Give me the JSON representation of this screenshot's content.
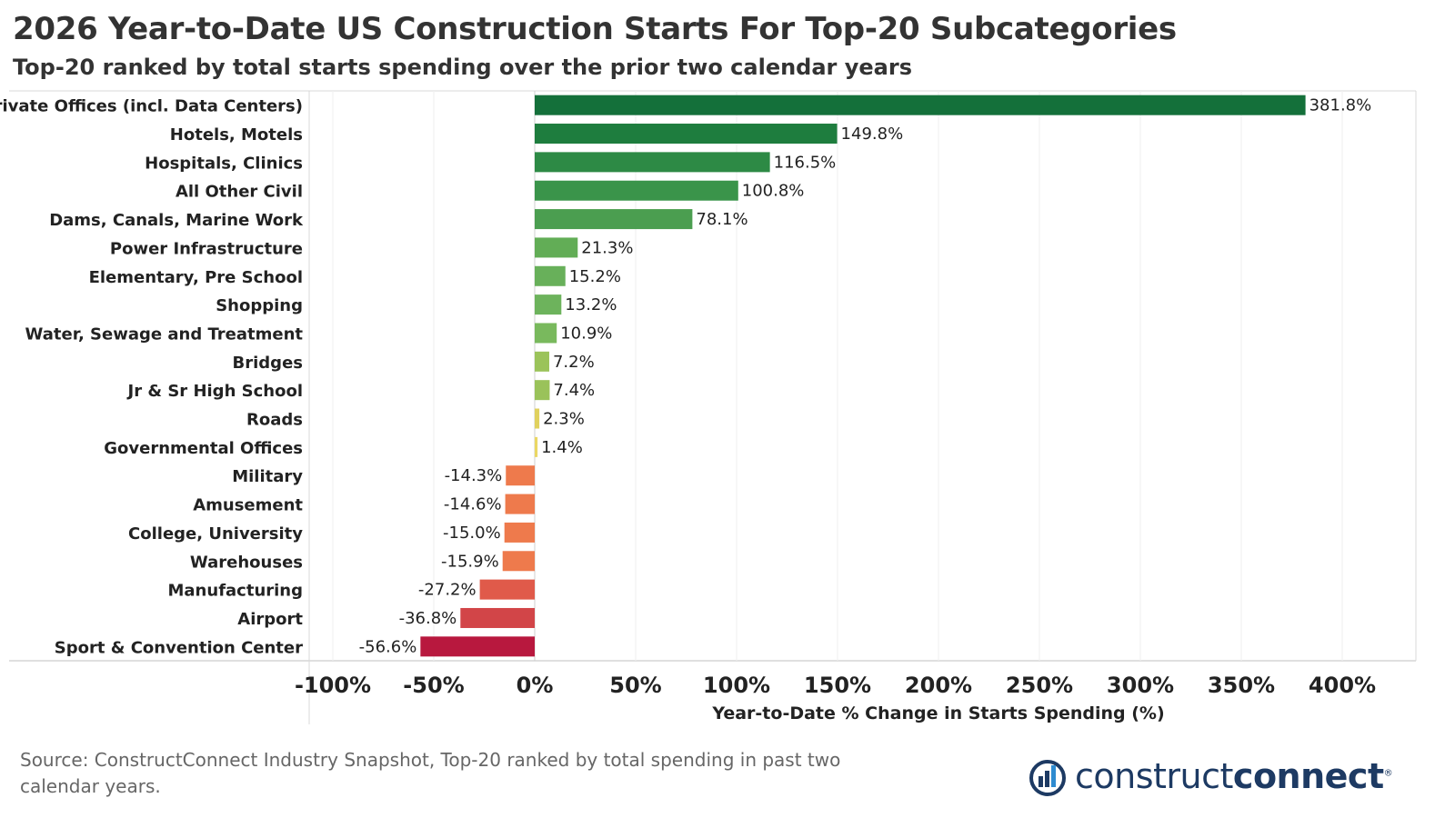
{
  "header": {
    "title": "2026 Year-to-Date US Construction Starts For Top-20 Subcategories",
    "subtitle": "Top-20 ranked by total starts spending over the prior two calendar years"
  },
  "footer": {
    "source": "Source: ConstructConnect Industry Snapshot, Top-20 ranked by total spending in past two calendar years."
  },
  "logo": {
    "part1": "construct",
    "part2": "connect",
    "mark": "®",
    "icon": "construct-connect-logo-icon"
  },
  "chart_data": {
    "type": "bar",
    "orientation": "horizontal",
    "title": "2026 Year-to-Date US Construction Starts For Top-20 Subcategories",
    "subtitle": "Top-20 ranked by total starts spending over the prior two calendar years",
    "xlabel": "Year-to-Date % Change in Starts Spending (%)",
    "ylabel": "",
    "xlim": [
      -110,
      420
    ],
    "xticks": [
      -100,
      -50,
      0,
      50,
      100,
      150,
      200,
      250,
      300,
      350,
      400
    ],
    "xtick_labels": [
      "-100%",
      "-50%",
      "0%",
      "50%",
      "100%",
      "150%",
      "200%",
      "250%",
      "300%",
      "350%",
      "400%"
    ],
    "grid": "vertical",
    "categories": [
      "Private Offices (incl. Data Centers)",
      "Hotels, Motels",
      "Hospitals, Clinics",
      "All Other Civil",
      "Dams, Canals, Marine Work",
      "Power Infrastructure",
      "Elementary, Pre School",
      "Shopping",
      "Water, Sewage and Treatment",
      "Bridges",
      "Jr & Sr High School",
      "Roads",
      "Governmental Offices",
      "Military",
      "Amusement",
      "College, University",
      "Warehouses",
      "Manufacturing",
      "Airport",
      "Sport & Convention Center"
    ],
    "values": [
      381.8,
      149.8,
      116.5,
      100.8,
      78.1,
      21.3,
      15.2,
      13.2,
      10.9,
      7.2,
      7.4,
      2.3,
      1.4,
      -14.3,
      -14.6,
      -15.0,
      -15.9,
      -27.2,
      -36.8,
      -56.6
    ],
    "value_labels": [
      "381.8%",
      "149.8%",
      "116.5%",
      "100.8%",
      "78.1%",
      "21.3%",
      "15.2%",
      "13.2%",
      "10.9%",
      "7.2%",
      "7.4%",
      "2.3%",
      "1.4%",
      "-14.3%",
      "-14.6%",
      "-15.0%",
      "-15.9%",
      "-27.2%",
      "-36.8%",
      "-56.6%"
    ],
    "colors": [
      "#14703a",
      "#1e7d3e",
      "#2d8a45",
      "#3a944a",
      "#4b9e50",
      "#62ad56",
      "#68b05a",
      "#6db35c",
      "#79b95d",
      "#9bc35a",
      "#9ac25a",
      "#e0d15e",
      "#ead764",
      "#ee7a4c",
      "#ee7a4c",
      "#ee7a4c",
      "#ee7a4c",
      "#e05a4a",
      "#d24548",
      "#b8183e"
    ]
  }
}
